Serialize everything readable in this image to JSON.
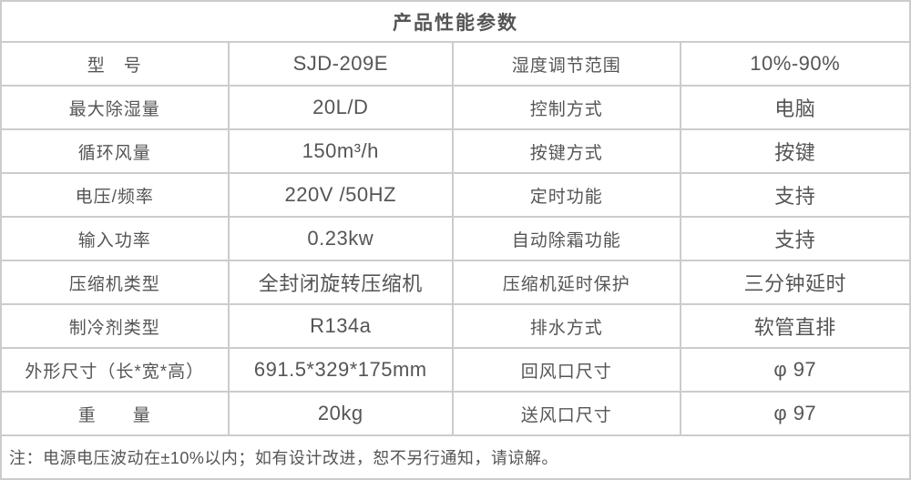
{
  "header": {
    "title": "产品性能参数"
  },
  "rows": [
    {
      "label1": "型　号",
      "value1": "SJD-209E",
      "label2": "湿度调节范围",
      "value2": "10%-90%"
    },
    {
      "label1": "最大除湿量",
      "value1": "20L/D",
      "label2": "控制方式",
      "value2": "电脑"
    },
    {
      "label1": "循环风量",
      "value1": "150m³/h",
      "label2": "按键方式",
      "value2": "按键"
    },
    {
      "label1": "电压/频率",
      "value1": "220V /50HZ",
      "label2": "定时功能",
      "value2": "支持"
    },
    {
      "label1": "输入功率",
      "value1": "0.23kw",
      "label2": "自动除霜功能",
      "value2": "支持"
    },
    {
      "label1": "压缩机类型",
      "value1": "全封闭旋转压缩机",
      "label2": "压缩机延时保护",
      "value2": "三分钟延时"
    },
    {
      "label1": "制冷剂类型",
      "value1": "R134a",
      "label2": "排水方式",
      "value2": "软管直排"
    },
    {
      "label1": "外形尺寸（长*宽*高）",
      "value1": "691.5*329*175mm",
      "label2": "回风口尺寸",
      "value2": "φ 97"
    },
    {
      "label1": "重　　量",
      "value1": "20kg",
      "label2": "送风口尺寸",
      "value2": "φ 97"
    }
  ],
  "note": "注：电源电压波动在±10%以内；如有设计改进，恕不另行通知，请谅解。",
  "colors": {
    "border_inner": "#cccccc",
    "border_outer": "#b3b3b3",
    "text": "#555555"
  }
}
